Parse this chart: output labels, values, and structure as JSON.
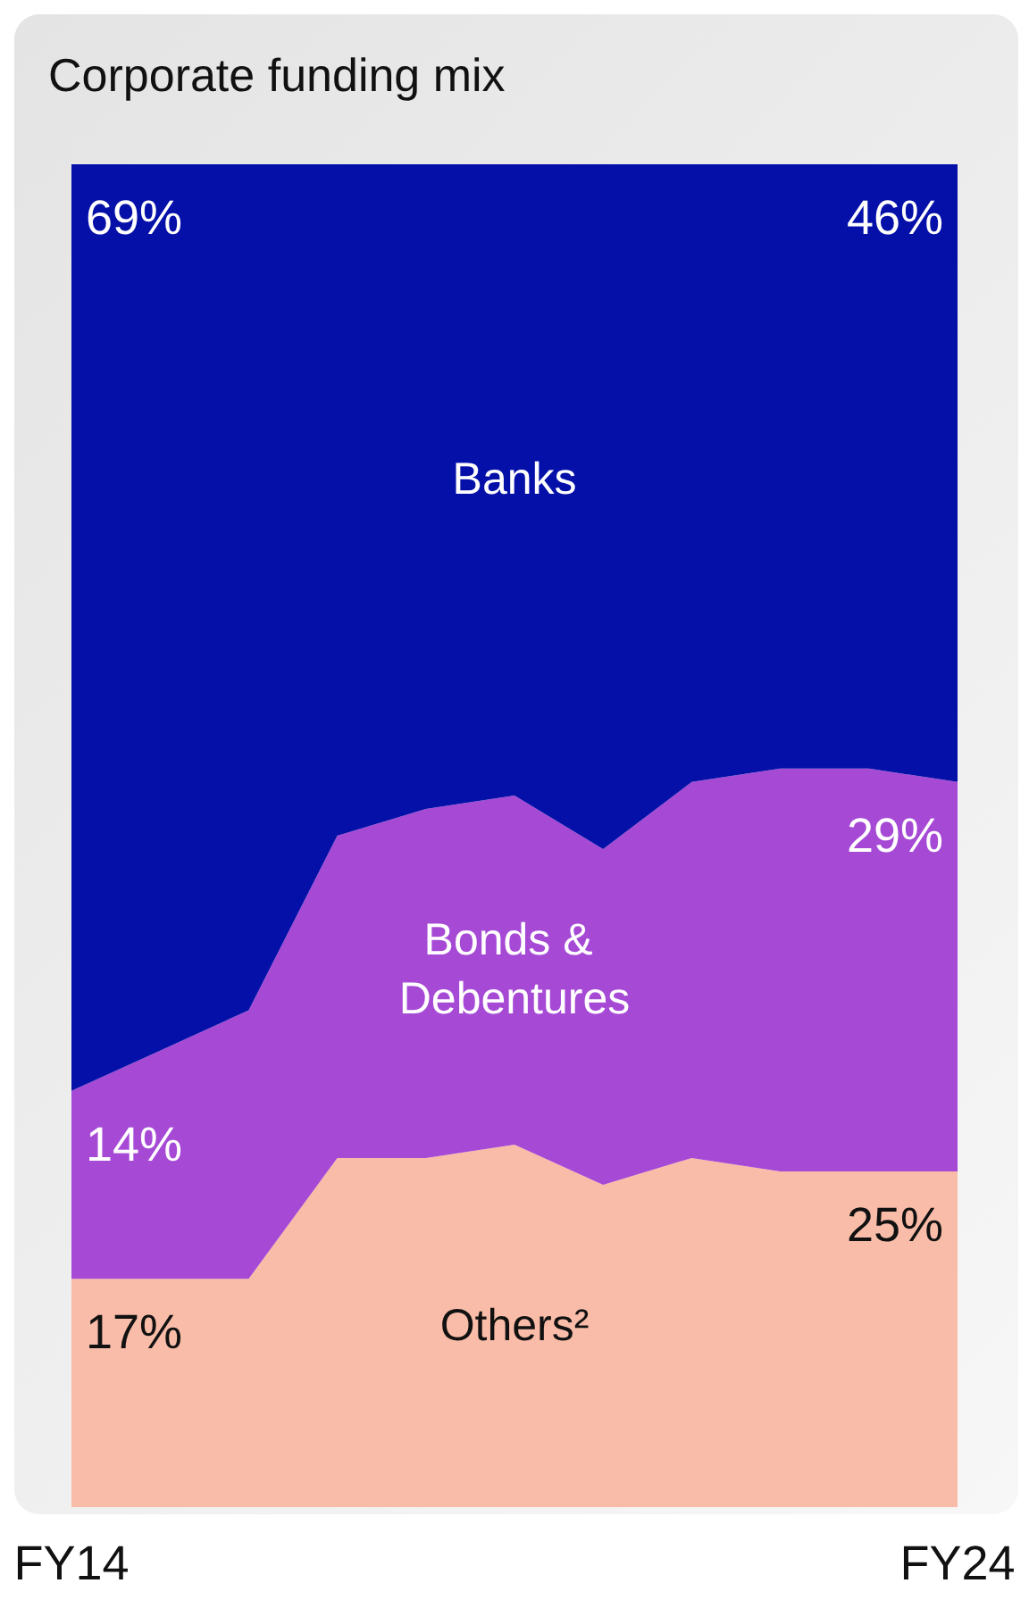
{
  "chart_data": {
    "type": "area",
    "title": "Corporate funding mix",
    "stacked": true,
    "categories": [
      "FY14",
      null,
      null,
      null,
      null,
      null,
      null,
      null,
      null,
      null,
      "FY24"
    ],
    "tick_labels": "x",
    "grid": false,
    "legend": false,
    "series": [
      {
        "name": "Others²",
        "color": "#f9bca8",
        "values": [
          17,
          17,
          17,
          26,
          26,
          27,
          24,
          26,
          25,
          25,
          25
        ],
        "value_labels": [
          "17%",
          null,
          null,
          null,
          null,
          null,
          null,
          null,
          null,
          null,
          "25%"
        ]
      },
      {
        "name": "Bonds & Debentures",
        "color": "#a64ad6",
        "values": [
          14,
          17,
          20,
          24,
          26,
          26,
          25,
          28,
          30,
          30,
          29
        ],
        "value_labels": [
          "14%",
          null,
          null,
          null,
          null,
          null,
          null,
          null,
          null,
          null,
          "29%"
        ]
      },
      {
        "name": "Banks",
        "color": "#0410a8",
        "values": [
          69,
          66,
          63,
          50,
          48,
          47,
          51,
          46,
          45,
          45,
          46
        ],
        "value_labels": [
          "69%",
          null,
          null,
          null,
          null,
          null,
          null,
          null,
          null,
          null,
          "46%"
        ]
      }
    ]
  }
}
